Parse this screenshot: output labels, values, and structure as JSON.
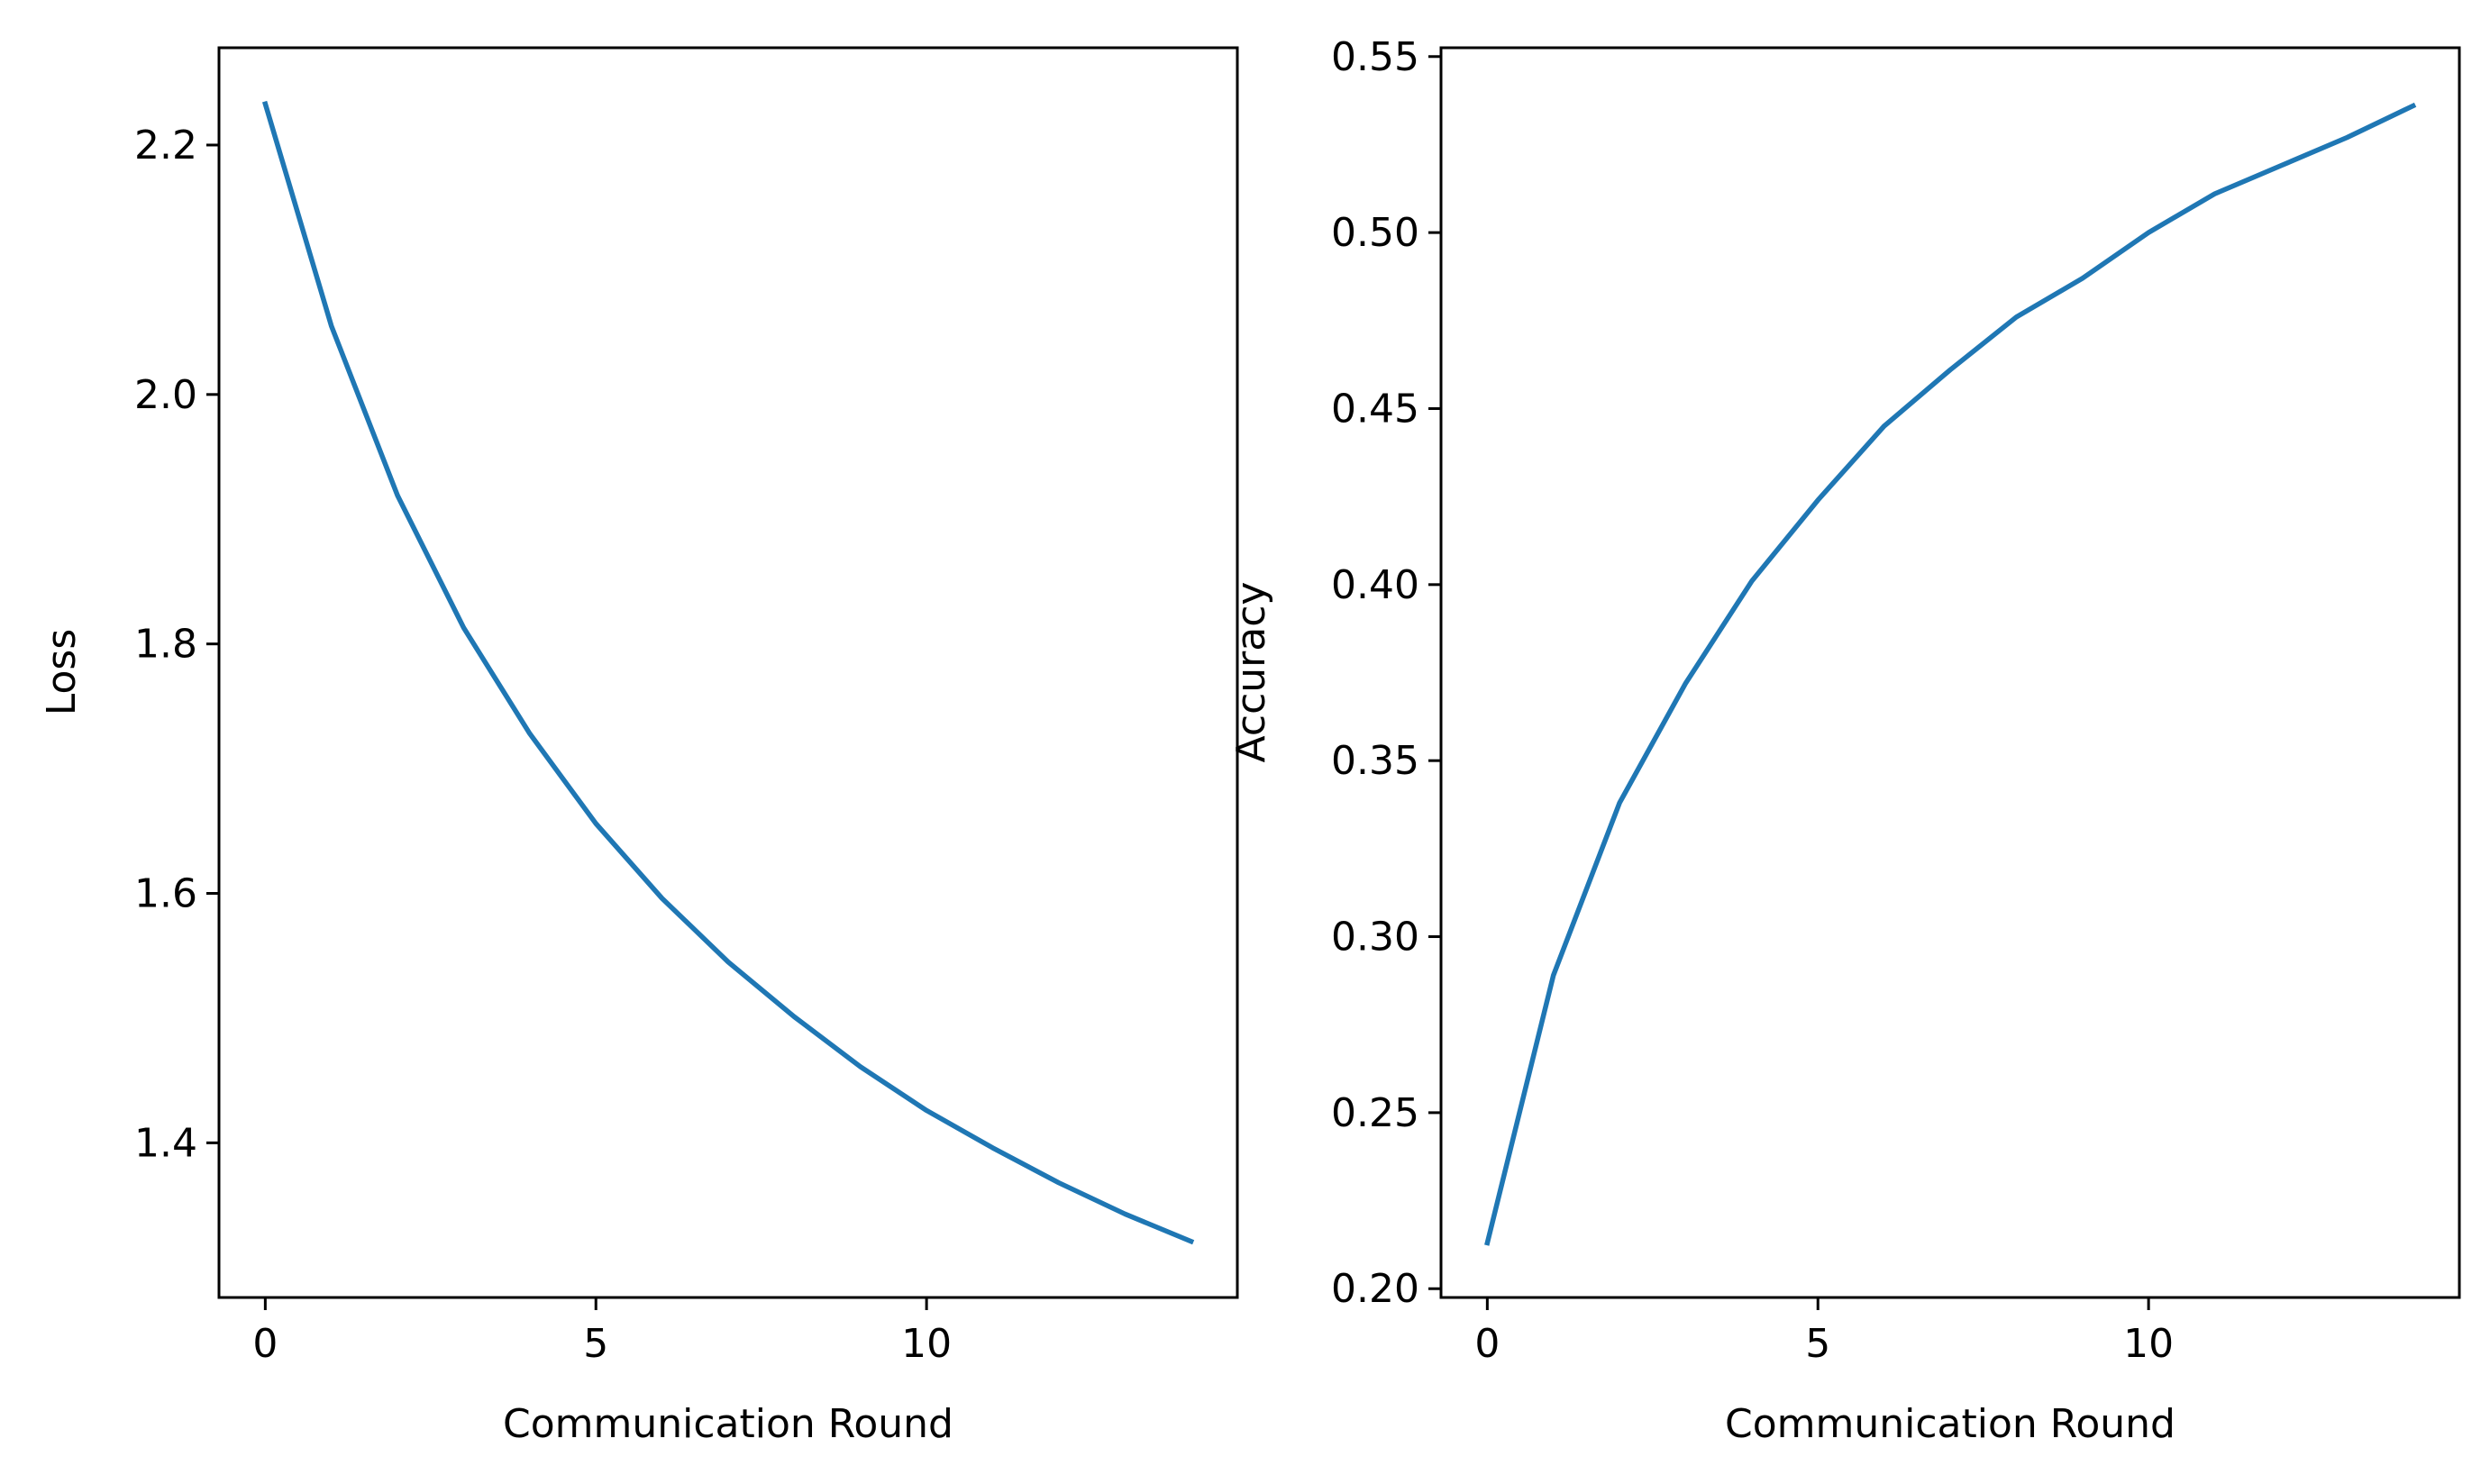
{
  "colors": {
    "series": "#1f77b4",
    "axes": "#000000",
    "background": "#ffffff"
  },
  "chart_data": [
    {
      "type": "line",
      "title": "",
      "xlabel": "Communication Round",
      "ylabel": "Loss",
      "xlim": [
        -0.7,
        14.7
      ],
      "ylim": [
        1.276,
        2.278
      ],
      "xticks": [
        0,
        5,
        10
      ],
      "xtick_labels": [
        "0",
        "5",
        "10"
      ],
      "yticks": [
        1.4,
        1.6,
        1.8,
        2.0,
        2.2
      ],
      "ytick_labels": [
        "1.4",
        "1.6",
        "1.8",
        "2.0",
        "2.2"
      ],
      "grid": false,
      "legend": "none",
      "x": [
        0,
        1,
        2,
        3,
        4,
        5,
        6,
        7,
        8,
        9,
        10,
        11,
        12,
        13,
        14
      ],
      "series": [
        {
          "values": [
            2.233,
            2.055,
            1.919,
            1.813,
            1.728,
            1.656,
            1.596,
            1.545,
            1.501,
            1.461,
            1.426,
            1.396,
            1.368,
            1.343,
            1.321
          ]
        }
      ]
    },
    {
      "type": "line",
      "title": "",
      "xlabel": "Communication Round",
      "ylabel": "Accuracy",
      "xlim": [
        -0.7,
        14.7
      ],
      "ylim": [
        0.1975,
        0.5525
      ],
      "xticks": [
        0,
        5,
        10
      ],
      "xtick_labels": [
        "0",
        "5",
        "10"
      ],
      "yticks": [
        0.2,
        0.25,
        0.3,
        0.35,
        0.4,
        0.45,
        0.5,
        0.55
      ],
      "ytick_labels": [
        "0.20",
        "0.25",
        "0.30",
        "0.35",
        "0.40",
        "0.45",
        "0.50",
        "0.55"
      ],
      "grid": false,
      "legend": "none",
      "x": [
        0,
        1,
        2,
        3,
        4,
        5,
        6,
        7,
        8,
        9,
        10,
        11,
        12,
        13,
        14
      ],
      "series": [
        {
          "values": [
            0.213,
            0.289,
            0.338,
            0.372,
            0.401,
            0.424,
            0.445,
            0.461,
            0.476,
            0.487,
            0.5,
            0.511,
            0.519,
            0.527,
            0.536
          ]
        }
      ]
    }
  ]
}
